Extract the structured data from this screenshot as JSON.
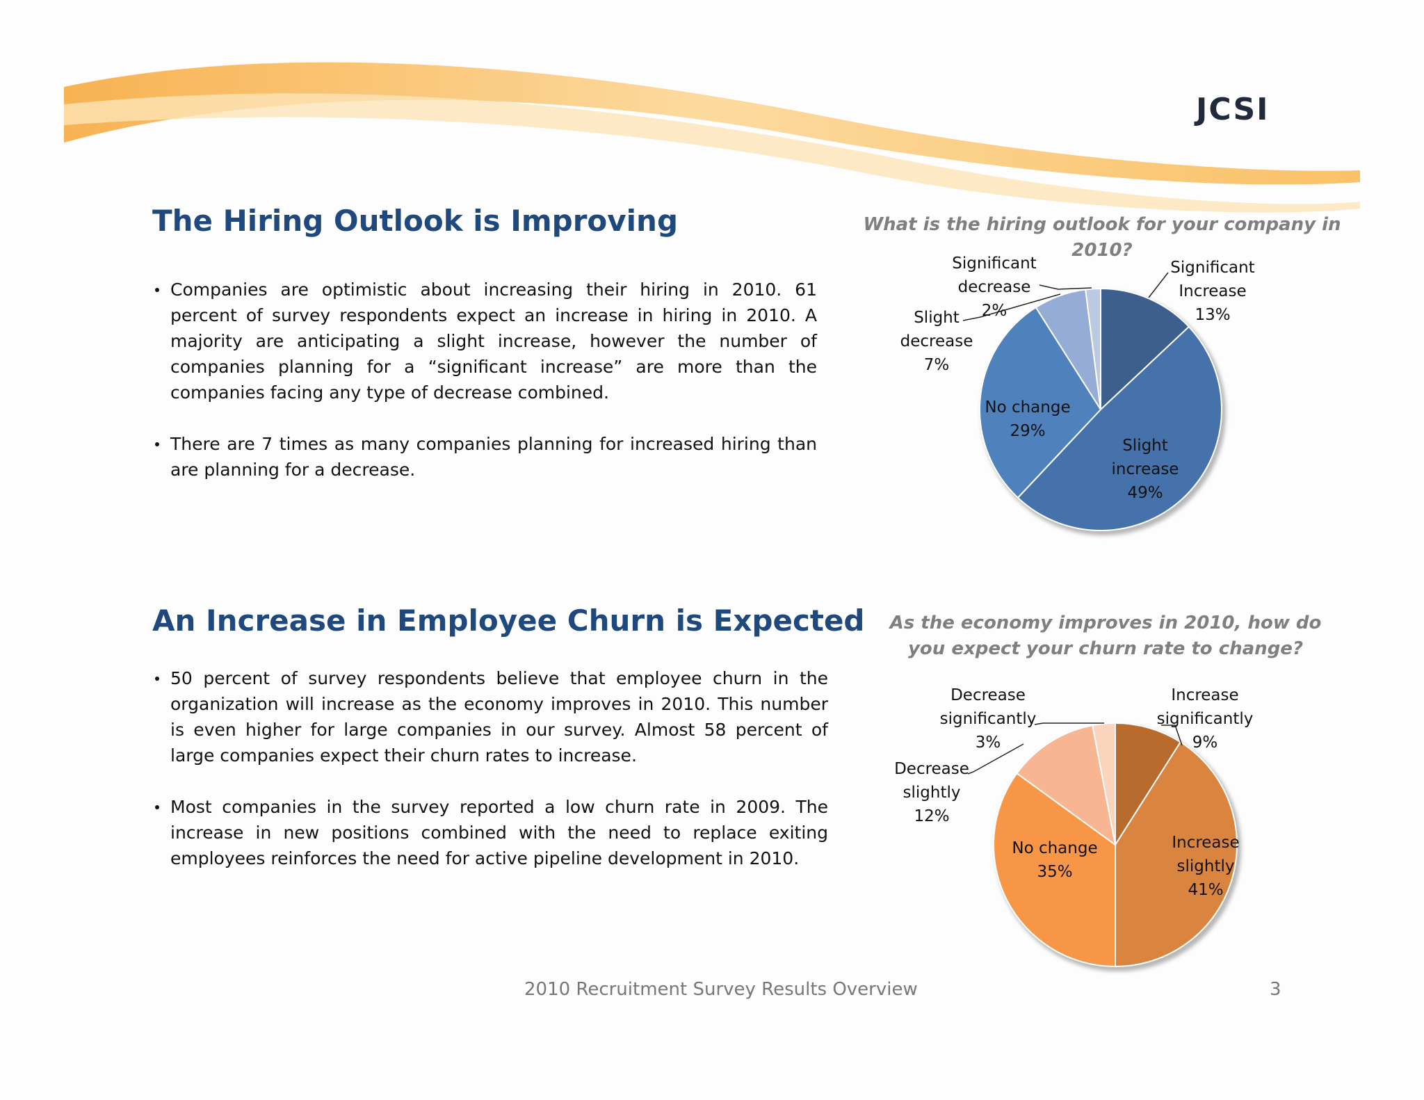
{
  "logo": "JCSI",
  "sections": [
    {
      "title": "The Hiring Outlook is Improving",
      "bullets": [
        "Companies are optimistic about increasing their hiring in 2010. 61 percent of survey respondents expect an increase in hiring in 2010. A majority are anticipating a slight increase, however the number of companies planning for a “significant increase” are more than the companies facing any type of decrease combined.",
        "There are 7 times as many companies planning for increased hiring than are planning for a decrease."
      ]
    },
    {
      "title": "An Increase in Employee Churn is Expected",
      "bullets": [
        "50 percent of survey respondents believe that employee churn in the organization will increase as the economy improves in 2010. This number is even higher for large companies in our survey.  Almost 58 percent of large companies expect their churn rates to increase.",
        "Most companies in the survey reported a low churn rate in 2009. The increase in new positions combined with the need to replace exiting employees reinforces the need for active pipeline development in 2010."
      ]
    }
  ],
  "chart_data": [
    {
      "type": "pie",
      "title": "What is the hiring outlook for your company in 2010?",
      "categories": [
        "Significant Increase",
        "Slight increase",
        "No change",
        "Slight decrease",
        "Significant decrease"
      ],
      "values": [
        13,
        49,
        29,
        7,
        2
      ],
      "value_labels": [
        "13%",
        "49%",
        "29%",
        "7%",
        "2%"
      ],
      "colors": [
        "#3d5f8e",
        "#4572aa",
        "#4f81bd",
        "#95acd6",
        "#bcc9e2"
      ]
    },
    {
      "type": "pie",
      "title": "As the economy improves in 2010, how do you expect your churn rate to change?",
      "categories": [
        "Increase significantly",
        "Increase slightly",
        "No change",
        "Decrease slightly",
        "Decrease significantly"
      ],
      "values": [
        9,
        41,
        35,
        12,
        3
      ],
      "value_labels": [
        "9%",
        "41%",
        "35%",
        "12%",
        "3%"
      ],
      "colors": [
        "#b96b2e",
        "#da853f",
        "#f79646",
        "#f8b592",
        "#fad4bc"
      ]
    }
  ],
  "footer": {
    "text": "2010 Recruitment Survey Results Overview",
    "page": 3
  }
}
